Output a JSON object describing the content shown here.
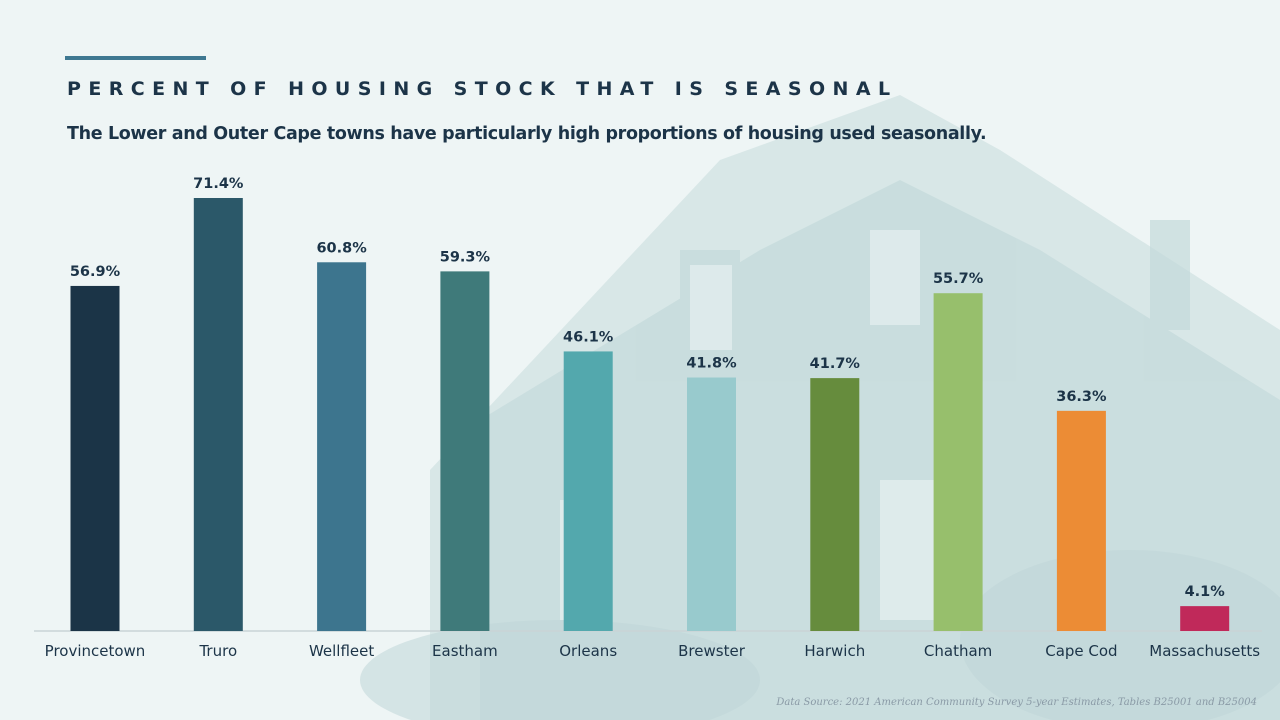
{
  "page": {
    "title": "PERCENT OF HOUSING STOCK THAT IS SEASONAL",
    "subtitle": "The Lower and Outer Cape towns have particularly high proportions of housing used seasonally.",
    "source": "Data Source: 2021 American Community Survey 5-year Estimates, Tables B25001 and B25004"
  },
  "chart_data": {
    "type": "bar",
    "title": "PERCENT OF HOUSING STOCK THAT IS SEASONAL",
    "xlabel": "",
    "ylabel": "",
    "ylim": [
      0,
      75
    ],
    "grid": false,
    "unit_suffix": "%",
    "categories": [
      "Provincetown",
      "Truro",
      "Wellfleet",
      "Eastham",
      "Orleans",
      "Brewster",
      "Harwich",
      "Chatham",
      "Cape Cod",
      "Massachusetts"
    ],
    "values": [
      56.9,
      71.4,
      60.8,
      59.3,
      46.1,
      41.8,
      41.7,
      55.7,
      36.3,
      4.1
    ],
    "labels": [
      "56.9%",
      "71.4%",
      "60.8%",
      "59.3%",
      "46.1%",
      "41.8%",
      "41.7%",
      "55.7%",
      "36.3%",
      "4.1%"
    ],
    "colors": [
      "#1b3447",
      "#2b5869",
      "#3d758e",
      "#3f7a7a",
      "#53a8ad",
      "#98cacd",
      "#668c3d",
      "#97bf6c",
      "#ec8c35",
      "#c0295a"
    ]
  },
  "colors": {
    "background": "#eef5f5",
    "text": "#1c3448",
    "accent": "#3e7891",
    "axis": "#c9d4d6",
    "source_text": "#8a9aa6"
  }
}
